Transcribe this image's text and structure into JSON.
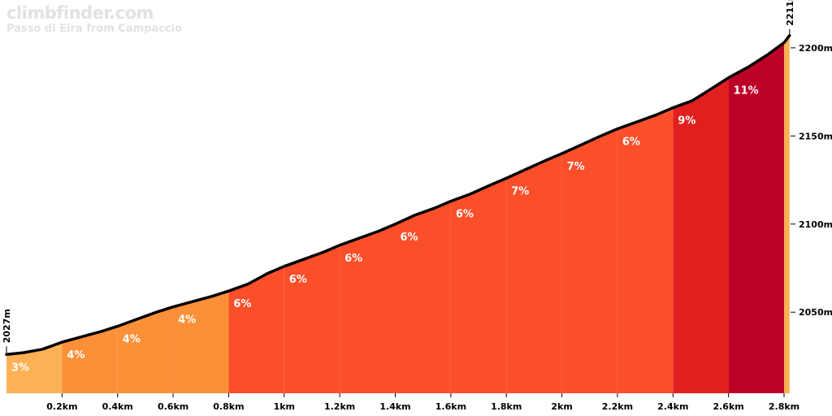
{
  "watermark": {
    "site": "climbfinder.com",
    "climb_name": "Passo di Eira from Campaccio"
  },
  "chart_data": {
    "type": "area",
    "title": "Passo di Eira from Campaccio",
    "xlabel": "",
    "ylabel": "",
    "x_unit": "km",
    "y_unit": "m",
    "xlim": [
      0,
      2.8
    ],
    "ylim": [
      2004,
      2217
    ],
    "x_ticks": [
      0.2,
      0.4,
      0.6,
      0.8,
      1.0,
      1.2,
      1.4,
      1.6,
      1.8,
      2.0,
      2.2,
      2.4,
      2.6,
      2.8
    ],
    "x_tick_labels": [
      "0.2km",
      "0.4km",
      "0.6km",
      "0.8km",
      "1km",
      "1.2km",
      "1.4km",
      "1.6km",
      "1.8km",
      "2km",
      "2.2km",
      "2.4km",
      "2.6km",
      "2.8km"
    ],
    "y_ticks": [
      2050,
      2100,
      2150,
      2200
    ],
    "y_tick_labels": [
      "2050m",
      "2100m",
      "2150m",
      "2200m"
    ],
    "start_label": "2027m",
    "end_label": "2211m",
    "profile": {
      "x": [
        0.0,
        0.06,
        0.13,
        0.2,
        0.27,
        0.34,
        0.4,
        0.47,
        0.54,
        0.6,
        0.67,
        0.74,
        0.8,
        0.87,
        0.94,
        1.0,
        1.07,
        1.14,
        1.2,
        1.27,
        1.34,
        1.4,
        1.47,
        1.54,
        1.6,
        1.67,
        1.74,
        1.8,
        1.87,
        1.94,
        2.0,
        2.07,
        2.14,
        2.2,
        2.27,
        2.34,
        2.4,
        2.47,
        2.54,
        2.6,
        2.67,
        2.74,
        2.8,
        2.82
      ],
      "y": [
        2026,
        2027,
        2029,
        2033,
        2036,
        2039,
        2042,
        2046,
        2050,
        2053,
        2056,
        2059,
        2062,
        2066,
        2072,
        2076,
        2080,
        2084,
        2088,
        2092,
        2096,
        2100,
        2105,
        2109,
        2113,
        2117,
        2122,
        2126,
        2131,
        2136,
        2140,
        2145,
        2150,
        2154,
        2158,
        2162,
        2166,
        2170,
        2177,
        2183,
        2189,
        2196,
        2203,
        2207
      ]
    },
    "segments": [
      {
        "from": 0.0,
        "to": 0.2,
        "grade": "3%",
        "color": "#fbb154"
      },
      {
        "from": 0.2,
        "to": 0.4,
        "grade": "4%",
        "color": "#fb9039"
      },
      {
        "from": 0.4,
        "to": 0.6,
        "grade": "4%",
        "color": "#fb9039"
      },
      {
        "from": 0.6,
        "to": 0.8,
        "grade": "4%",
        "color": "#fb9039"
      },
      {
        "from": 0.8,
        "to": 1.0,
        "grade": "6%",
        "color": "#fb4f2a"
      },
      {
        "from": 1.0,
        "to": 1.2,
        "grade": "6%",
        "color": "#fb4f2a"
      },
      {
        "from": 1.2,
        "to": 1.4,
        "grade": "6%",
        "color": "#fb4f2a"
      },
      {
        "from": 1.4,
        "to": 1.6,
        "grade": "6%",
        "color": "#fb4f2a"
      },
      {
        "from": 1.6,
        "to": 1.8,
        "grade": "6%",
        "color": "#fb4f2a"
      },
      {
        "from": 1.8,
        "to": 2.0,
        "grade": "7%",
        "color": "#fb4f2a"
      },
      {
        "from": 2.0,
        "to": 2.2,
        "grade": "7%",
        "color": "#fb4f2a"
      },
      {
        "from": 2.2,
        "to": 2.4,
        "grade": "6%",
        "color": "#fb4f2a"
      },
      {
        "from": 2.4,
        "to": 2.6,
        "grade": "9%",
        "color": "#e21f1f"
      },
      {
        "from": 2.6,
        "to": 2.8,
        "grade": "11%",
        "color": "#bd0227"
      },
      {
        "from": 2.8,
        "to": 2.82,
        "grade": "",
        "color": "#fbb154"
      }
    ],
    "colors": {
      "line": "#000000",
      "tick_text": "#000000",
      "grade_text": "#ffffff"
    }
  }
}
